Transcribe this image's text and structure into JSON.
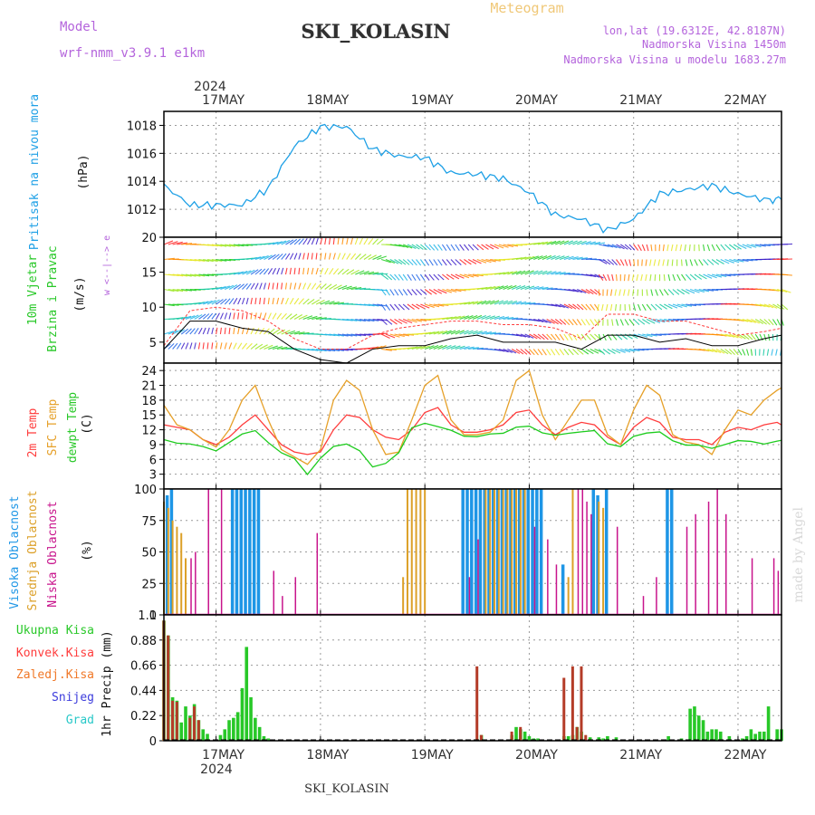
{
  "header": {
    "model_label": "Model",
    "model_name": "wrf-nmm_v3.9.1  e1km",
    "title": "SKI_KOLASIN",
    "product": "Meteogram",
    "lonlat": "lon,lat (19.6312E, 42.8187N)",
    "elevation": "Nadmorska Visina 1450m",
    "model_elevation": "Nadmorska Visina u modelu 1683.27m",
    "footer": "SKI_KOLASIN",
    "watermark": "made by Angel"
  },
  "colors": {
    "pressure": "#1ea0e6",
    "temp2m": "#ff3c3c",
    "sfc": "#e6a028",
    "dew": "#1ecc1e",
    "high_cloud": "#1e96e6",
    "mid_cloud": "#dca028",
    "low_cloud": "#c8148c",
    "total_precip": "#28c828",
    "conv_precip": "#b43c28",
    "frozen": "#f07828",
    "snow": "#3c3cdc",
    "hail": "#28c8c8",
    "title_purple": "#b464dc",
    "meteogram_orange": "#f0c878"
  },
  "chart_data": [
    {
      "type": "line",
      "name": "pressure",
      "ylabel_1": "Pritisak na nivou mora",
      "ylabel_2": "(hPa)",
      "ylim": [
        1010,
        1019
      ],
      "yticks": [
        1012,
        1014,
        1016,
        1018
      ],
      "ytick_labels": [
        "1012",
        "1014",
        "1016",
        "1018"
      ],
      "x_hours": [
        0,
        6,
        12,
        18,
        24,
        30,
        36,
        42,
        48,
        54,
        60,
        66,
        72,
        78,
        84,
        90,
        96,
        102,
        108,
        114,
        120,
        126,
        132,
        138,
        142
      ],
      "values": [
        1013.7,
        1012.3,
        1012.3,
        1012.3,
        1013.5,
        1016.5,
        1017.9,
        1017.9,
        1016.3,
        1015.8,
        1015.7,
        1014.6,
        1014.5,
        1014.2,
        1013.2,
        1011.6,
        1011.3,
        1010.5,
        1011.3,
        1013.1,
        1013.4,
        1013.7,
        1013.1,
        1012.7,
        1012.7
      ],
      "grid": true
    },
    {
      "type": "wind",
      "name": "wind",
      "ylabel_1": "10m Vjetar",
      "ylabel_2": "Brzina i Pravac",
      "ylabel_3": "(m/s)",
      "compass": "w <--|--> e",
      "ylim": [
        2,
        20
      ],
      "yticks": [
        5,
        10,
        15,
        20
      ],
      "ytick_labels": [
        "5",
        "10",
        "15",
        "20"
      ],
      "x_hours": [
        0,
        6,
        12,
        18,
        24,
        30,
        36,
        42,
        48,
        54,
        60,
        66,
        72,
        78,
        84,
        90,
        96,
        102,
        108,
        114,
        120,
        126,
        132,
        138,
        142
      ],
      "speed_values": [
        4.0,
        8.0,
        8.0,
        7.0,
        6.5,
        4.0,
        2.5,
        2.0,
        4.0,
        4.5,
        4.5,
        5.5,
        6.0,
        5.0,
        5.0,
        5.0,
        4.0,
        6.0,
        6.0,
        5.0,
        5.5,
        4.5,
        4.5,
        5.5,
        6.0
      ],
      "gust_values": [
        4.5,
        9.5,
        10.0,
        9.5,
        8.0,
        5.5,
        4.0,
        4.0,
        6.0,
        7.0,
        7.5,
        8.0,
        8.0,
        7.5,
        7.5,
        7.0,
        5.5,
        9.0,
        9.0,
        8.0,
        8.0,
        7.0,
        6.0,
        6.5,
        7.0
      ]
    },
    {
      "type": "line",
      "name": "temperature",
      "ylabel_1": "2m Temp",
      "ylabel_2": "SFC Temp",
      "ylabel_3": "dewpt Temp",
      "ylabel_4": "(C)",
      "ylim": [
        0,
        25.5
      ],
      "yticks": [
        3,
        6,
        9,
        12,
        15,
        18,
        21,
        24
      ],
      "ytick_labels": [
        "3",
        "6",
        "9",
        "12",
        "15",
        "18",
        "21",
        "24"
      ],
      "x_hours": [
        0,
        3,
        6,
        9,
        12,
        15,
        18,
        21,
        24,
        27,
        30,
        33,
        36,
        39,
        42,
        45,
        48,
        51,
        54,
        57,
        60,
        63,
        66,
        69,
        72,
        75,
        78,
        81,
        84,
        87,
        90,
        93,
        96,
        99,
        102,
        105,
        108,
        111,
        114,
        117,
        120,
        123,
        126,
        129,
        132,
        135,
        138,
        141,
        142
      ],
      "series": [
        {
          "name": "2m Temp",
          "values": [
            13,
            12.5,
            12,
            10,
            9,
            10.5,
            13,
            15,
            12,
            9,
            7.5,
            7,
            7.5,
            12,
            15,
            14.5,
            12,
            10.5,
            10,
            12,
            15.5,
            16.5,
            13,
            11.5,
            11.5,
            12,
            13,
            15.5,
            16,
            13,
            11,
            12.5,
            13.5,
            13,
            10.5,
            9,
            12.5,
            14.5,
            13.5,
            10.5,
            10,
            10,
            9,
            11.5,
            12.5,
            12,
            13,
            13.5,
            13
          ]
        },
        {
          "name": "SFC Temp",
          "values": [
            17,
            13,
            12,
            10,
            8.5,
            12,
            18,
            21,
            14,
            8,
            6.5,
            5,
            8,
            18,
            22,
            20,
            12,
            7,
            7.5,
            14,
            21,
            23,
            14,
            11,
            11,
            11.5,
            14,
            22,
            24,
            15,
            10,
            14,
            18,
            18,
            11,
            9,
            16,
            21,
            19,
            11,
            9.5,
            9,
            7,
            12,
            16,
            15,
            18,
            20,
            20.5
          ]
        },
        {
          "name": "dewpt Temp",
          "values": [
            10,
            9.5,
            9.5,
            9,
            8,
            9.5,
            11,
            11.5,
            9,
            7,
            6,
            3,
            6.5,
            9,
            9.5,
            8,
            4.5,
            5,
            7,
            12,
            13,
            12.5,
            12,
            11,
            11,
            11.5,
            11.5,
            12.5,
            12.5,
            11,
            10.5,
            11,
            11.5,
            12,
            9.5,
            9,
            11,
            11.5,
            11.5,
            9.5,
            8.5,
            8.5,
            8,
            9,
            10,
            10,
            9.5,
            10,
            10
          ]
        }
      ],
      "grid": true
    },
    {
      "type": "bar",
      "name": "cloud",
      "ylabel_1": "Visoka Oblacnost",
      "ylabel_2": "Srednja Oblacnost",
      "ylabel_3": "Niska Oblacnost",
      "ylabel_4": "(%)",
      "ylim": [
        0,
        100
      ],
      "yticks": [
        0,
        25,
        50,
        75,
        100
      ],
      "ytick_labels": [
        "0",
        "25",
        "50",
        "75",
        "100"
      ],
      "series": [
        {
          "name": "Visoka Oblacnost",
          "x_hours": [
            1,
            2,
            16,
            17,
            18,
            19,
            20,
            21,
            22,
            69,
            70,
            71,
            72,
            73,
            74,
            75,
            76,
            77,
            78,
            79,
            80,
            81,
            82,
            83,
            84,
            85,
            86,
            87,
            92,
            99,
            100,
            102,
            116,
            117
          ],
          "values": [
            95,
            100,
            100,
            100,
            100,
            100,
            100,
            100,
            100,
            100,
            100,
            100,
            100,
            100,
            100,
            100,
            100,
            100,
            100,
            100,
            100,
            100,
            100,
            100,
            100,
            100,
            100,
            100,
            40,
            100,
            95,
            100,
            100,
            100
          ]
        },
        {
          "name": "Srednja Oblacnost",
          "x_hours": [
            0,
            1,
            2,
            3,
            4,
            5,
            55,
            56,
            57,
            58,
            59,
            60,
            74,
            75,
            76,
            77,
            78,
            79,
            80,
            81,
            82,
            83,
            93,
            94,
            100,
            101
          ],
          "values": [
            90,
            85,
            75,
            70,
            65,
            45,
            30,
            100,
            100,
            100,
            100,
            100,
            100,
            100,
            100,
            100,
            100,
            100,
            100,
            100,
            100,
            100,
            30,
            100,
            90,
            85
          ]
        },
        {
          "name": "Niska Oblacnost",
          "x_hours": [
            6,
            7,
            10,
            13,
            25,
            27,
            30,
            35,
            70,
            72,
            85,
            88,
            90,
            95,
            96,
            97,
            98,
            104,
            110,
            113,
            120,
            122,
            125,
            127,
            129,
            135,
            140,
            141
          ],
          "values": [
            45,
            50,
            100,
            100,
            35,
            15,
            30,
            65,
            30,
            60,
            70,
            60,
            40,
            100,
            100,
            90,
            80,
            70,
            15,
            30,
            70,
            80,
            90,
            100,
            80,
            45,
            45,
            35
          ]
        }
      ],
      "grid": true
    },
    {
      "type": "bar",
      "name": "precip",
      "legend": [
        "Ukupna Kisa",
        "Konvek.Kisa",
        "Zaledj.Kisa",
        "Snijeg",
        "Grad"
      ],
      "ylabel_1": "1hr Precip (mm)",
      "ylim": [
        0,
        1.1
      ],
      "yticks": [
        0,
        0.22,
        0.44,
        0.66,
        0.88,
        1.1
      ],
      "ytick_labels": [
        "0",
        "0.22",
        "0.44",
        "0.66",
        "0.88",
        "1.1"
      ],
      "series": [
        {
          "name": "Ukupna Kisa",
          "x_hours": [
            0,
            1,
            2,
            3,
            4,
            5,
            6,
            7,
            8,
            9,
            10,
            13,
            14,
            15,
            16,
            17,
            18,
            19,
            20,
            21,
            22,
            23,
            24,
            73,
            80,
            81,
            82,
            83,
            84,
            85,
            86,
            92,
            93,
            94,
            95,
            96,
            98,
            100,
            101,
            102,
            104,
            116,
            119,
            121,
            122,
            123,
            124,
            125,
            126,
            127,
            128,
            130,
            133,
            134,
            135,
            136,
            137,
            138,
            139,
            141,
            142
          ],
          "values": [
            1.05,
            0.92,
            0.38,
            0.35,
            0.16,
            0.3,
            0.22,
            0.32,
            0.18,
            0.1,
            0.06,
            0.05,
            0.1,
            0.18,
            0.2,
            0.25,
            0.46,
            0.82,
            0.38,
            0.2,
            0.12,
            0.04,
            0.02,
            0.05,
            0.05,
            0.12,
            0.1,
            0.08,
            0.04,
            0.02,
            0.02,
            0.04,
            0.04,
            0.05,
            0.12,
            0.08,
            0.03,
            0.03,
            0.02,
            0.04,
            0.03,
            0.04,
            0.02,
            0.28,
            0.3,
            0.22,
            0.18,
            0.08,
            0.1,
            0.1,
            0.08,
            0.04,
            0.02,
            0.04,
            0.1,
            0.06,
            0.08,
            0.08,
            0.3,
            0.1,
            0.1
          ]
        },
        {
          "name": "Konvek.Kisa",
          "x_hours": [
            0,
            1,
            2,
            3,
            6,
            7,
            8,
            72,
            73,
            80,
            82,
            92,
            94,
            95,
            96,
            97
          ],
          "values": [
            1.05,
            0.92,
            0.35,
            0.34,
            0.2,
            0.3,
            0.18,
            0.65,
            0.05,
            0.08,
            0.12,
            0.55,
            0.65,
            0.12,
            0.65,
            0.05
          ]
        }
      ]
    }
  ],
  "xaxis": {
    "year_label": "2024",
    "day_labels": [
      "17MAY",
      "18MAY",
      "19MAY",
      "20MAY",
      "21MAY",
      "22MAY"
    ],
    "day_hours": [
      12,
      36,
      60,
      84,
      108,
      132
    ],
    "hours_span": 142
  }
}
